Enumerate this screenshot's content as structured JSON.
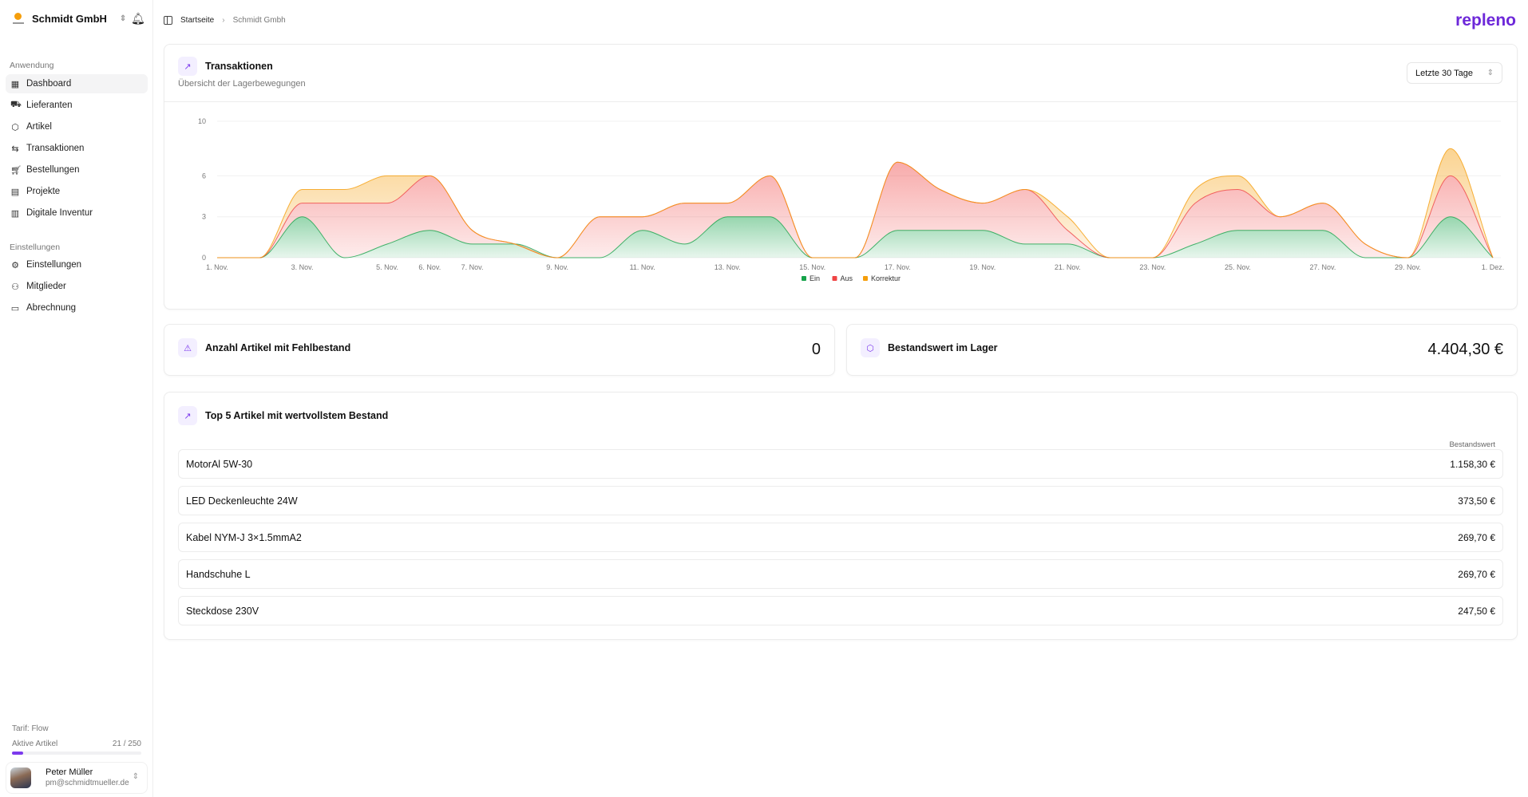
{
  "sidebar": {
    "company": "Schmidt GmbH",
    "section1": "Anwendung",
    "items": [
      {
        "label": "Dashboard",
        "icon": "grid-icon",
        "active": true
      },
      {
        "label": "Lieferanten",
        "icon": "truck-icon"
      },
      {
        "label": "Artikel",
        "icon": "package-icon"
      },
      {
        "label": "Transaktionen",
        "icon": "arrows-icon"
      },
      {
        "label": "Bestellungen",
        "icon": "cart-icon"
      },
      {
        "label": "Projekte",
        "icon": "file-icon"
      },
      {
        "label": "Digitale Inventur",
        "icon": "clipboard-icon"
      }
    ],
    "section2": "Einstellungen",
    "settings": [
      {
        "label": "Einstellungen",
        "icon": "gear-icon"
      },
      {
        "label": "Mitglieder",
        "icon": "users-icon"
      },
      {
        "label": "Abrechnung",
        "icon": "card-icon"
      }
    ],
    "plan": "Tarif: Flow",
    "active_label": "Aktive Artikel",
    "active_count": "21 / 250",
    "active_fraction": 0.084,
    "user": {
      "name": "Peter Müller",
      "email": "pm@schmidtmueller.de"
    }
  },
  "breadcrumb": [
    "Startseite",
    "Schmidt Gmbh"
  ],
  "brand": "repleno",
  "chart_card": {
    "title": "Transaktionen",
    "subtitle": "Übersicht der Lagerbewegungen",
    "range": "Letzte 30 Tage"
  },
  "chart_data": {
    "type": "area",
    "stacked": true,
    "x": [
      "1. Nov.",
      "2. Nov.",
      "3. Nov.",
      "4. Nov.",
      "5. Nov.",
      "6. Nov.",
      "7. Nov.",
      "8. Nov.",
      "9. Nov.",
      "10. Nov.",
      "11. Nov.",
      "12. Nov.",
      "13. Nov.",
      "14. Nov.",
      "15. Nov.",
      "16. Nov.",
      "17. Nov.",
      "18. Nov.",
      "19. Nov.",
      "20. Nov.",
      "21. Nov.",
      "22. Nov.",
      "23. Nov.",
      "24. Nov.",
      "25. Nov.",
      "26. Nov.",
      "27. Nov.",
      "28. Nov.",
      "29. Nov.",
      "30. Nov.",
      "1. Dez."
    ],
    "x_tick_labels": [
      "1. Nov.",
      "3. Nov.",
      "5. Nov.",
      "6. Nov.",
      "7. Nov.",
      "9. Nov.",
      "11. Nov.",
      "13. Nov.",
      "15. Nov.",
      "17. Nov.",
      "19. Nov.",
      "21. Nov.",
      "23. Nov.",
      "25. Nov.",
      "27. Nov.",
      "29. Nov.",
      "1. Dez."
    ],
    "y_ticks": [
      0,
      3,
      6,
      10
    ],
    "ylim": [
      0,
      10
    ],
    "grid": true,
    "legend": "bottom",
    "series": [
      {
        "name": "Ein",
        "color": "#16a34a",
        "values": [
          0,
          0,
          3,
          0,
          1,
          2,
          1,
          1,
          0,
          0,
          2,
          1,
          3,
          3,
          0,
          0,
          2,
          2,
          2,
          1,
          1,
          0,
          0,
          1,
          2,
          2,
          2,
          0,
          0,
          3,
          0
        ]
      },
      {
        "name": "Aus",
        "color": "#ef4444",
        "values": [
          0,
          0,
          1,
          4,
          3,
          4,
          1,
          0,
          0,
          3,
          1,
          3,
          1,
          3,
          0,
          0,
          5,
          3,
          2,
          4,
          1,
          0,
          0,
          3,
          3,
          1,
          2,
          1,
          0,
          3,
          0
        ]
      },
      {
        "name": "Korrektur",
        "color": "#f59e0b",
        "values": [
          0,
          0,
          1,
          1,
          2,
          0,
          0,
          0,
          0,
          0,
          0,
          0,
          0,
          0,
          0,
          0,
          0,
          0,
          0,
          0,
          1,
          0,
          0,
          1,
          1,
          0,
          0,
          0,
          0,
          2,
          0
        ]
      }
    ]
  },
  "stats": {
    "shortage": {
      "label": "Anzahl Artikel mit Fehlbestand",
      "value": "0"
    },
    "stock_value": {
      "label": "Bestandswert im Lager",
      "value": "4.404,30 €"
    }
  },
  "top5": {
    "title": "Top 5 Artikel mit wertvollstem Bestand",
    "column": "Bestandswert",
    "rows": [
      {
        "name": "MotorAl 5W-30",
        "value": "1.158,30 €"
      },
      {
        "name": "LED Deckenleuchte 24W",
        "value": "373,50 €"
      },
      {
        "name": "Kabel NYM-J 3×1.5mmA2",
        "value": "269,70 €"
      },
      {
        "name": "Handschuhe L",
        "value": "269,70 €"
      },
      {
        "name": "Steckdose 230V",
        "value": "247,50 €"
      }
    ]
  }
}
